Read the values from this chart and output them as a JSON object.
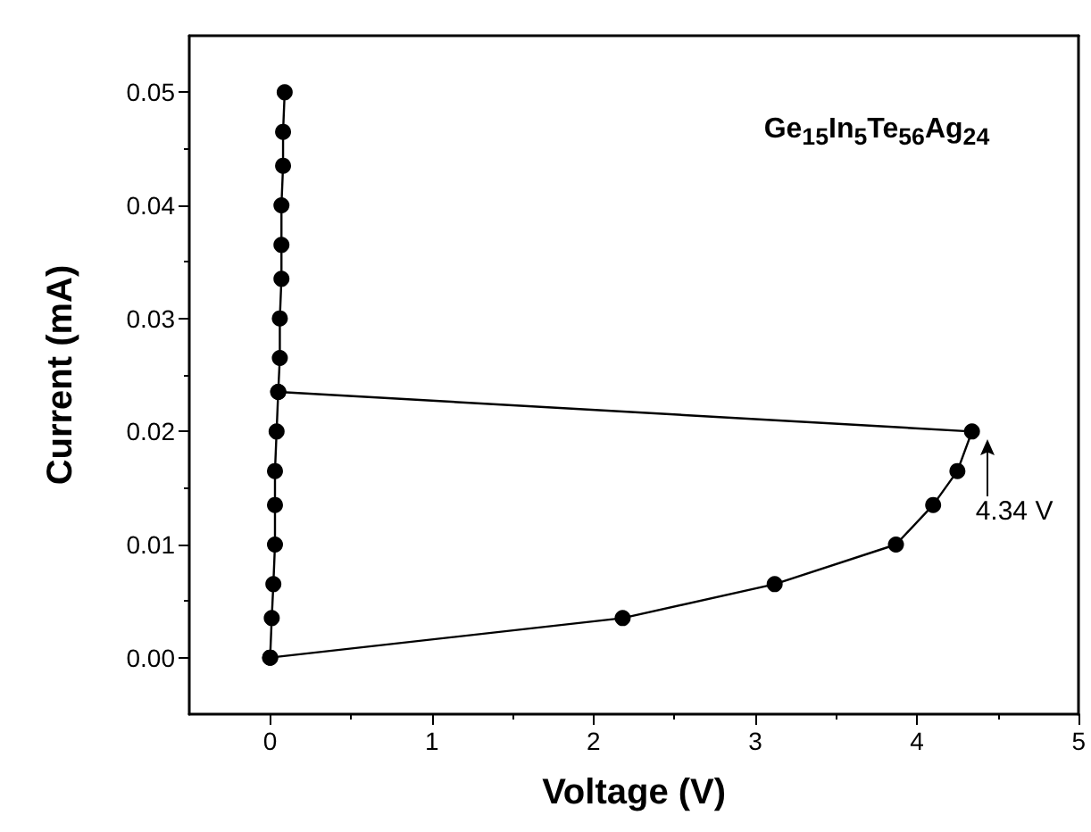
{
  "chart_data": {
    "type": "line",
    "xlabel": "Voltage (V)",
    "ylabel": "Current (mA)",
    "series": [
      {
        "color": "#000000",
        "x": [
          0,
          2.18,
          3.12,
          3.87,
          4.1,
          4.25,
          4.34,
          0.05,
          0.06,
          0.06,
          0.07,
          0.07,
          0.07,
          0.08,
          0.08,
          0.09
        ],
        "values": [
          0,
          0.0035,
          0.0065,
          0.01,
          0.0135,
          0.0165,
          0.02,
          0.0235,
          0.0265,
          0.03,
          0.0335,
          0.0365,
          0.04,
          0.0435,
          0.0465,
          0.05
        ]
      },
      {
        "color": "#000000",
        "x": [
          0.05,
          0.04,
          0.03,
          0.03,
          0.03,
          0.02,
          0.01,
          0
        ],
        "values": [
          0.0235,
          0.02,
          0.0165,
          0.0135,
          0.01,
          0.0065,
          0.0035,
          0
        ]
      }
    ],
    "annotations": [
      "Ge$_{15}$In$_{5}$Te$_{56}$Ag$_{24}$",
      {
        "text": "4.34 V",
        "x": 4.34,
        "y": 0.02
      }
    ],
    "xlim": [
      -0.5,
      5
    ],
    "xticks": [
      0,
      1,
      2,
      3,
      4,
      5
    ],
    "ylim": [
      -0.005,
      0.055
    ],
    "yticks": [
      {
        "value": 0,
        "label": "0.00"
      },
      {
        "value": 0.01,
        "label": "0.01"
      },
      {
        "value": 0.02,
        "label": "0.02"
      },
      {
        "value": 0.03,
        "label": "0.03"
      },
      {
        "value": 0.04,
        "label": "0.04"
      },
      {
        "value": 0.05,
        "label": "0.05"
      }
    ],
    "grid": false,
    "marker": "circle",
    "line_style": "solid"
  }
}
